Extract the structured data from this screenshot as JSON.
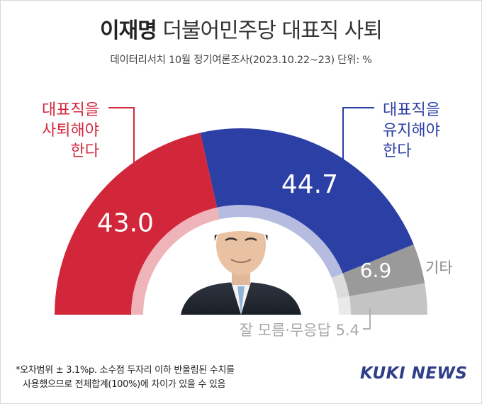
{
  "header": {
    "name": "이재명",
    "title_rest": "더불어민주당 대표직 사퇴",
    "subtitle": "데이터리서치 10월 정기여론조사(2023.10.22~23) 단위: %"
  },
  "chart_data": {
    "type": "donut-half",
    "title": "이재명 더불어민주당 대표직 사퇴",
    "unit": "%",
    "series": [
      {
        "name": "대표직을 사퇴해야 한다",
        "label_lines": [
          "대표직을",
          "사퇴해야",
          "한다"
        ],
        "value": 43.0,
        "value_label": "43.0",
        "color": "#d2273a"
      },
      {
        "name": "대표직을 유지해야 한다",
        "label_lines": [
          "대표직을",
          "유지해야",
          "한다"
        ],
        "value": 44.7,
        "value_label": "44.7",
        "color": "#2b3fa5"
      },
      {
        "name": "기타",
        "label_lines": [
          "기타"
        ],
        "value": 6.9,
        "value_label": "6.9",
        "color": "#9a9a9a"
      },
      {
        "name": "잘 모름·무응답",
        "label_lines": [
          "잘 모름·무응답 5.4"
        ],
        "value": 5.4,
        "value_label": "",
        "color": "#c4c4c4"
      }
    ]
  },
  "footnote": {
    "line1": "*오차범위 ± 3.1%p. 소수점 두자리 이하 반올림된 수치를",
    "line2": "사용했으므로 전체합계(100%)에 차이가 있을 수 있음"
  },
  "logo": "KUKI NEWS",
  "colors": {
    "red": "#d2273a",
    "blue": "#2b3fa5",
    "gray_dark": "#9a9a9a",
    "gray_light": "#c4c4c4"
  },
  "portrait_icon": "person-portrait"
}
